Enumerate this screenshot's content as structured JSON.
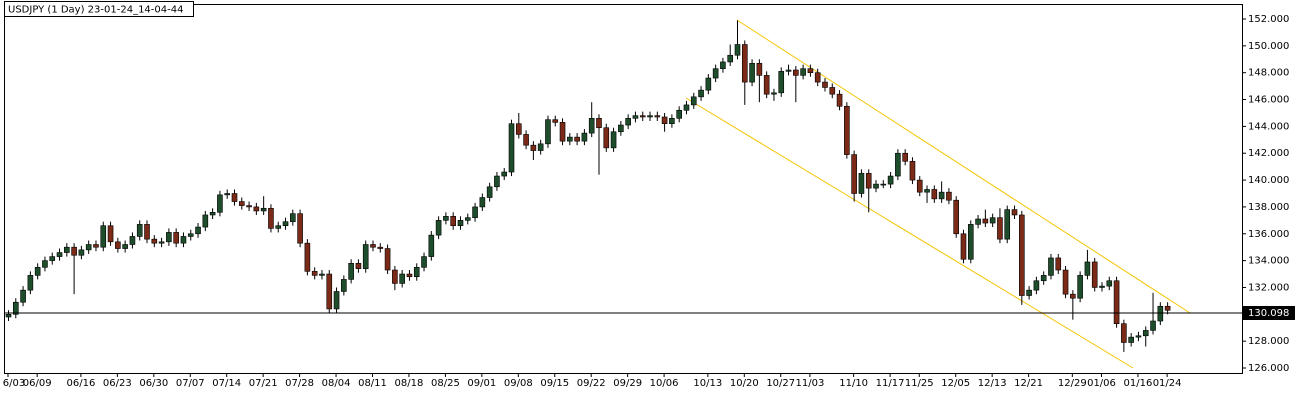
{
  "chart_data": {
    "type": "candlestick",
    "title": "USDJPY (1 Day) 23-01-24_14-04-44",
    "up_color": "#1e4d2b",
    "down_color": "#7a2a16",
    "line_color": "#000000",
    "current_price": 130.098,
    "ylim": [
      126,
      152
    ],
    "yticks": [
      {
        "value": 126,
        "label": "126.000"
      },
      {
        "value": 128,
        "label": "128.000"
      },
      {
        "value": 130,
        "label": "130.000"
      },
      {
        "value": 132,
        "label": "132.000"
      },
      {
        "value": 134,
        "label": "134.000"
      },
      {
        "value": 136,
        "label": "136.000"
      },
      {
        "value": 138,
        "label": "138.000"
      },
      {
        "value": 140,
        "label": "140.000"
      },
      {
        "value": 142,
        "label": "142.000"
      },
      {
        "value": 144,
        "label": "144.000"
      },
      {
        "value": 146,
        "label": "146.000"
      },
      {
        "value": 148,
        "label": "148.000"
      },
      {
        "value": 150,
        "label": "150.000"
      },
      {
        "value": 152,
        "label": "152.000"
      }
    ],
    "xticks": [
      {
        "value": 0,
        "label": "6/03"
      },
      {
        "value": 4,
        "label": "06/09"
      },
      {
        "value": 10,
        "label": "06/16"
      },
      {
        "value": 15,
        "label": "06/23"
      },
      {
        "value": 20,
        "label": "06/30"
      },
      {
        "value": 25,
        "label": "07/07"
      },
      {
        "value": 30,
        "label": "07/14"
      },
      {
        "value": 35,
        "label": "07/21"
      },
      {
        "value": 40,
        "label": "07/28"
      },
      {
        "value": 45,
        "label": "08/04"
      },
      {
        "value": 50,
        "label": "08/11"
      },
      {
        "value": 55,
        "label": "08/18"
      },
      {
        "value": 60,
        "label": "08/25"
      },
      {
        "value": 65,
        "label": "09/01"
      },
      {
        "value": 70,
        "label": "09/08"
      },
      {
        "value": 75,
        "label": "09/15"
      },
      {
        "value": 80,
        "label": "09/22"
      },
      {
        "value": 85,
        "label": "09/29"
      },
      {
        "value": 90,
        "label": "10/06"
      },
      {
        "value": 96,
        "label": "10/13"
      },
      {
        "value": 101,
        "label": "10/20"
      },
      {
        "value": 106,
        "label": "10/27"
      },
      {
        "value": 110,
        "label": "11/03"
      },
      {
        "value": 116,
        "label": "11/10"
      },
      {
        "value": 121,
        "label": "11/17"
      },
      {
        "value": 125,
        "label": "11/25"
      },
      {
        "value": 130,
        "label": "12/05"
      },
      {
        "value": 135,
        "label": "12/13"
      },
      {
        "value": 140,
        "label": "12/21"
      },
      {
        "value": 146,
        "label": "12/29"
      },
      {
        "value": 150,
        "label": "01/06"
      },
      {
        "value": 155,
        "label": "01/16"
      },
      {
        "value": 159,
        "label": "01/24"
      }
    ],
    "ohlc": [
      [
        129.8,
        130.3,
        129.5,
        130.0
      ],
      [
        130.0,
        131.2,
        129.7,
        130.9
      ],
      [
        130.9,
        132.1,
        130.6,
        131.8
      ],
      [
        131.8,
        133.2,
        131.5,
        132.9
      ],
      [
        132.9,
        133.8,
        132.6,
        133.5
      ],
      [
        133.5,
        134.3,
        133.2,
        134.0
      ],
      [
        134.0,
        134.6,
        133.7,
        134.3
      ],
      [
        134.3,
        134.9,
        134.0,
        134.6
      ],
      [
        134.6,
        135.3,
        134.3,
        135.0
      ],
      [
        135.0,
        135.3,
        131.5,
        134.4
      ],
      [
        134.4,
        135.1,
        134.1,
        134.8
      ],
      [
        134.8,
        135.5,
        134.5,
        135.2
      ],
      [
        135.2,
        135.5,
        134.7,
        135.0
      ],
      [
        135.0,
        136.9,
        134.7,
        136.6
      ],
      [
        136.6,
        136.9,
        135.1,
        135.4
      ],
      [
        135.4,
        135.7,
        134.6,
        134.9
      ],
      [
        134.9,
        135.5,
        134.6,
        135.2
      ],
      [
        135.2,
        136.1,
        134.9,
        135.8
      ],
      [
        135.8,
        137.0,
        135.5,
        136.7
      ],
      [
        136.7,
        137.0,
        135.3,
        135.6
      ],
      [
        135.6,
        135.9,
        135.0,
        135.3
      ],
      [
        135.3,
        135.7,
        135.0,
        135.4
      ],
      [
        135.4,
        136.4,
        135.1,
        136.1
      ],
      [
        136.1,
        136.4,
        135.0,
        135.3
      ],
      [
        135.3,
        136.1,
        135.0,
        135.8
      ],
      [
        135.8,
        136.3,
        135.5,
        136.0
      ],
      [
        136.0,
        136.8,
        135.7,
        136.5
      ],
      [
        136.5,
        137.7,
        136.2,
        137.4
      ],
      [
        137.4,
        137.9,
        137.1,
        137.6
      ],
      [
        137.6,
        139.2,
        137.3,
        138.9
      ],
      [
        138.9,
        139.3,
        138.6,
        139.0
      ],
      [
        139.0,
        139.3,
        138.1,
        138.4
      ],
      [
        138.4,
        138.7,
        137.8,
        138.1
      ],
      [
        138.1,
        138.4,
        137.7,
        138.0
      ],
      [
        138.0,
        138.3,
        137.4,
        137.7
      ],
      [
        137.7,
        138.8,
        137.4,
        137.9
      ],
      [
        137.9,
        138.2,
        136.1,
        136.4
      ],
      [
        136.4,
        136.9,
        136.1,
        136.6
      ],
      [
        136.6,
        137.2,
        136.3,
        136.9
      ],
      [
        136.9,
        137.8,
        136.6,
        137.5
      ],
      [
        137.5,
        137.8,
        135.0,
        135.3
      ],
      [
        135.3,
        135.6,
        132.9,
        133.2
      ],
      [
        133.2,
        133.5,
        132.6,
        132.9
      ],
      [
        132.9,
        133.3,
        132.6,
        133.0
      ],
      [
        133.0,
        133.3,
        130.1,
        130.4
      ],
      [
        130.4,
        132.0,
        130.1,
        131.7
      ],
      [
        131.7,
        132.9,
        131.4,
        132.6
      ],
      [
        132.6,
        134.1,
        132.3,
        133.8
      ],
      [
        133.8,
        134.1,
        133.1,
        133.4
      ],
      [
        133.4,
        135.5,
        133.1,
        135.2
      ],
      [
        135.2,
        135.5,
        134.7,
        135.0
      ],
      [
        135.0,
        135.3,
        134.6,
        134.9
      ],
      [
        134.9,
        135.2,
        133.0,
        133.3
      ],
      [
        133.3,
        133.6,
        131.8,
        132.3
      ],
      [
        132.3,
        133.3,
        132.0,
        133.0
      ],
      [
        133.0,
        133.3,
        132.5,
        132.8
      ],
      [
        132.8,
        133.8,
        132.5,
        133.5
      ],
      [
        133.5,
        134.6,
        133.2,
        134.3
      ],
      [
        134.3,
        136.2,
        134.0,
        135.9
      ],
      [
        135.9,
        137.3,
        135.6,
        137.0
      ],
      [
        137.0,
        137.6,
        136.7,
        137.3
      ],
      [
        137.3,
        137.6,
        136.3,
        136.6
      ],
      [
        136.6,
        137.3,
        136.3,
        137.0
      ],
      [
        137.0,
        137.5,
        136.7,
        137.2
      ],
      [
        137.2,
        138.3,
        136.9,
        138.0
      ],
      [
        138.0,
        139.0,
        137.7,
        138.7
      ],
      [
        138.7,
        139.8,
        138.4,
        139.5
      ],
      [
        139.5,
        140.6,
        139.2,
        140.3
      ],
      [
        140.3,
        140.9,
        140.0,
        140.6
      ],
      [
        140.6,
        144.5,
        140.3,
        144.2
      ],
      [
        144.2,
        145.0,
        143.1,
        143.4
      ],
      [
        143.4,
        143.7,
        142.3,
        142.6
      ],
      [
        142.6,
        142.9,
        141.5,
        142.2
      ],
      [
        142.2,
        143.0,
        141.9,
        142.7
      ],
      [
        142.7,
        144.8,
        142.4,
        144.5
      ],
      [
        144.5,
        144.8,
        144.0,
        144.3
      ],
      [
        144.3,
        144.6,
        142.6,
        142.9
      ],
      [
        142.9,
        143.5,
        142.6,
        143.2
      ],
      [
        143.2,
        143.5,
        142.6,
        142.9
      ],
      [
        142.9,
        143.8,
        142.6,
        143.5
      ],
      [
        143.5,
        145.8,
        143.2,
        144.6
      ],
      [
        144.6,
        144.9,
        140.4,
        143.9
      ],
      [
        143.9,
        144.2,
        142.1,
        142.4
      ],
      [
        142.4,
        143.9,
        142.1,
        143.6
      ],
      [
        143.6,
        144.4,
        143.3,
        144.1
      ],
      [
        144.1,
        144.9,
        143.8,
        144.6
      ],
      [
        144.6,
        145.1,
        144.3,
        144.8
      ],
      [
        144.8,
        145.1,
        144.4,
        144.7
      ],
      [
        144.7,
        145.1,
        144.4,
        144.8
      ],
      [
        144.8,
        145.1,
        144.4,
        144.7
      ],
      [
        144.7,
        145.0,
        143.6,
        144.2
      ],
      [
        144.2,
        144.9,
        143.9,
        144.6
      ],
      [
        144.6,
        145.5,
        144.3,
        145.2
      ],
      [
        145.2,
        145.9,
        144.9,
        145.6
      ],
      [
        145.6,
        146.5,
        145.3,
        146.2
      ],
      [
        146.2,
        147.0,
        145.9,
        146.7
      ],
      [
        146.7,
        147.9,
        146.4,
        147.6
      ],
      [
        147.6,
        148.6,
        147.3,
        148.3
      ],
      [
        148.3,
        149.1,
        148.0,
        148.8
      ],
      [
        148.8,
        150.1,
        148.5,
        149.3
      ],
      [
        149.3,
        151.9,
        149.0,
        150.1
      ],
      [
        150.1,
        150.4,
        145.6,
        147.3
      ],
      [
        147.3,
        149.0,
        147.0,
        148.7
      ],
      [
        148.7,
        149.0,
        145.8,
        147.8
      ],
      [
        147.8,
        148.1,
        146.1,
        146.4
      ],
      [
        146.4,
        146.8,
        145.9,
        146.5
      ],
      [
        146.5,
        148.4,
        146.2,
        148.1
      ],
      [
        148.1,
        148.6,
        147.8,
        148.2
      ],
      [
        148.2,
        148.5,
        145.8,
        147.8
      ],
      [
        147.8,
        148.6,
        147.5,
        148.3
      ],
      [
        148.3,
        148.6,
        147.7,
        148.0
      ],
      [
        148.0,
        148.3,
        147.0,
        147.3
      ],
      [
        147.3,
        147.6,
        146.6,
        146.9
      ],
      [
        146.9,
        147.2,
        146.1,
        146.4
      ],
      [
        146.4,
        146.7,
        145.2,
        145.5
      ],
      [
        145.5,
        145.8,
        141.6,
        141.9
      ],
      [
        141.9,
        142.2,
        138.4,
        139.0
      ],
      [
        139.0,
        140.8,
        138.7,
        140.5
      ],
      [
        140.5,
        140.8,
        137.6,
        139.4
      ],
      [
        139.4,
        140.0,
        139.1,
        139.7
      ],
      [
        139.7,
        140.0,
        139.4,
        139.7
      ],
      [
        139.7,
        140.6,
        139.4,
        140.3
      ],
      [
        140.3,
        142.3,
        140.0,
        142.0
      ],
      [
        142.0,
        142.3,
        141.1,
        141.4
      ],
      [
        141.4,
        141.7,
        139.7,
        140.0
      ],
      [
        140.0,
        140.3,
        138.8,
        139.1
      ],
      [
        139.1,
        139.6,
        138.3,
        139.3
      ],
      [
        139.3,
        139.6,
        138.3,
        138.6
      ],
      [
        138.6,
        139.9,
        138.3,
        139.1
      ],
      [
        139.1,
        139.4,
        138.2,
        138.5
      ],
      [
        138.5,
        138.8,
        135.7,
        136.0
      ],
      [
        136.0,
        136.3,
        133.8,
        134.1
      ],
      [
        134.1,
        137.0,
        133.8,
        136.7
      ],
      [
        136.7,
        137.4,
        136.4,
        137.1
      ],
      [
        137.1,
        137.8,
        136.5,
        136.8
      ],
      [
        136.8,
        137.5,
        136.5,
        137.2
      ],
      [
        137.2,
        137.9,
        135.3,
        135.6
      ],
      [
        135.6,
        138.1,
        135.3,
        137.8
      ],
      [
        137.8,
        138.1,
        137.1,
        137.4
      ],
      [
        137.4,
        137.7,
        130.7,
        131.4
      ],
      [
        131.4,
        132.1,
        131.1,
        131.8
      ],
      [
        131.8,
        132.8,
        131.5,
        132.5
      ],
      [
        132.5,
        133.2,
        132.2,
        132.9
      ],
      [
        132.9,
        134.5,
        132.6,
        134.2
      ],
      [
        134.2,
        134.5,
        133.0,
        133.3
      ],
      [
        133.3,
        133.6,
        131.2,
        131.5
      ],
      [
        131.5,
        131.8,
        129.6,
        131.2
      ],
      [
        131.2,
        133.2,
        130.9,
        132.9
      ],
      [
        132.9,
        134.8,
        132.6,
        133.9
      ],
      [
        133.9,
        134.2,
        131.7,
        132.0
      ],
      [
        132.0,
        132.4,
        131.7,
        132.1
      ],
      [
        132.1,
        132.8,
        131.8,
        132.5
      ],
      [
        132.5,
        132.8,
        129.0,
        129.3
      ],
      [
        129.3,
        129.6,
        127.2,
        127.9
      ],
      [
        127.9,
        128.6,
        127.6,
        128.3
      ],
      [
        128.3,
        128.7,
        128.0,
        128.4
      ],
      [
        128.4,
        129.1,
        127.6,
        128.8
      ],
      [
        128.8,
        131.6,
        128.5,
        129.5
      ],
      [
        129.5,
        130.9,
        129.2,
        130.6
      ],
      [
        130.6,
        130.9,
        130.0,
        130.3
      ]
    ]
  }
}
